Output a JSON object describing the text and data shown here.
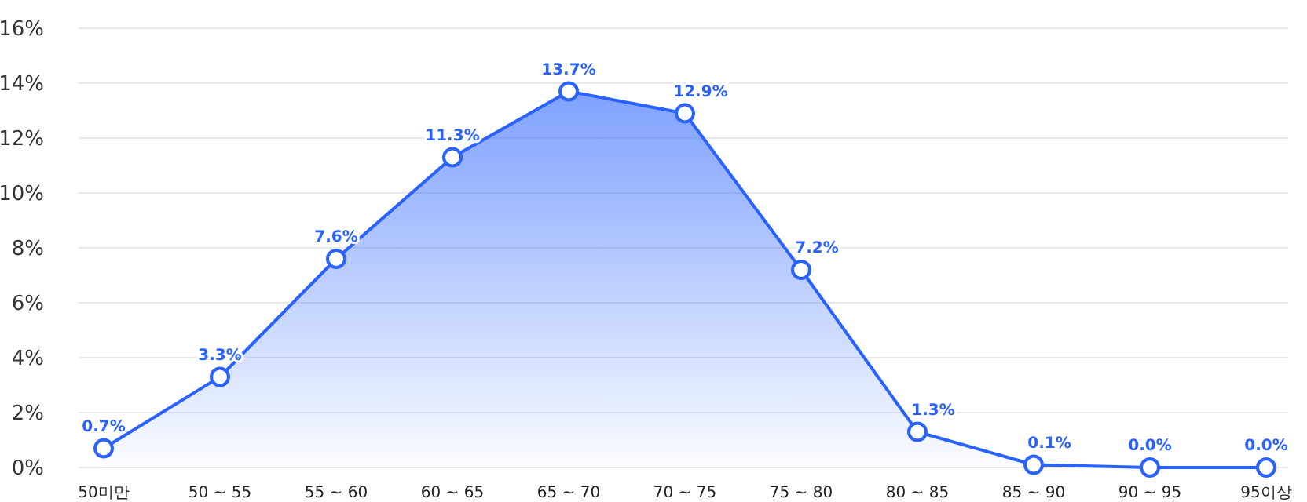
{
  "chart_data": {
    "type": "area",
    "categories": [
      "50미만",
      "50 ~ 55",
      "55 ~ 60",
      "60 ~ 65",
      "65 ~ 70",
      "70 ~ 75",
      "75 ~ 80",
      "80 ~ 85",
      "85 ~ 90",
      "90 ~ 95",
      "95이상"
    ],
    "series": [
      {
        "color": "#2962ff",
        "values": [
          0.7,
          3.3,
          7.6,
          11.3,
          13.7,
          12.9,
          7.2,
          1.3,
          0.1,
          0.0,
          0.0
        ],
        "value_labels": [
          "0.7%",
          "3.3%",
          "7.6%",
          "11.3%",
          "13.7%",
          "12.9%",
          "7.2%",
          "1.3%",
          "0.1%",
          "0.0%",
          "0.0%"
        ]
      }
    ],
    "ylim": [
      0,
      16
    ],
    "yticks": [
      {
        "value": 0,
        "label": "0%"
      },
      {
        "value": 2,
        "label": "2%"
      },
      {
        "value": 4,
        "label": "4%"
      },
      {
        "value": 6,
        "label": "6%"
      },
      {
        "value": 8,
        "label": "8%"
      },
      {
        "value": 10,
        "label": "10%"
      },
      {
        "value": 12,
        "label": "12%"
      },
      {
        "value": 14,
        "label": "14%"
      },
      {
        "value": 16,
        "label": "16%"
      }
    ],
    "grid": "y",
    "marker": "circle",
    "line_style": "solid"
  }
}
